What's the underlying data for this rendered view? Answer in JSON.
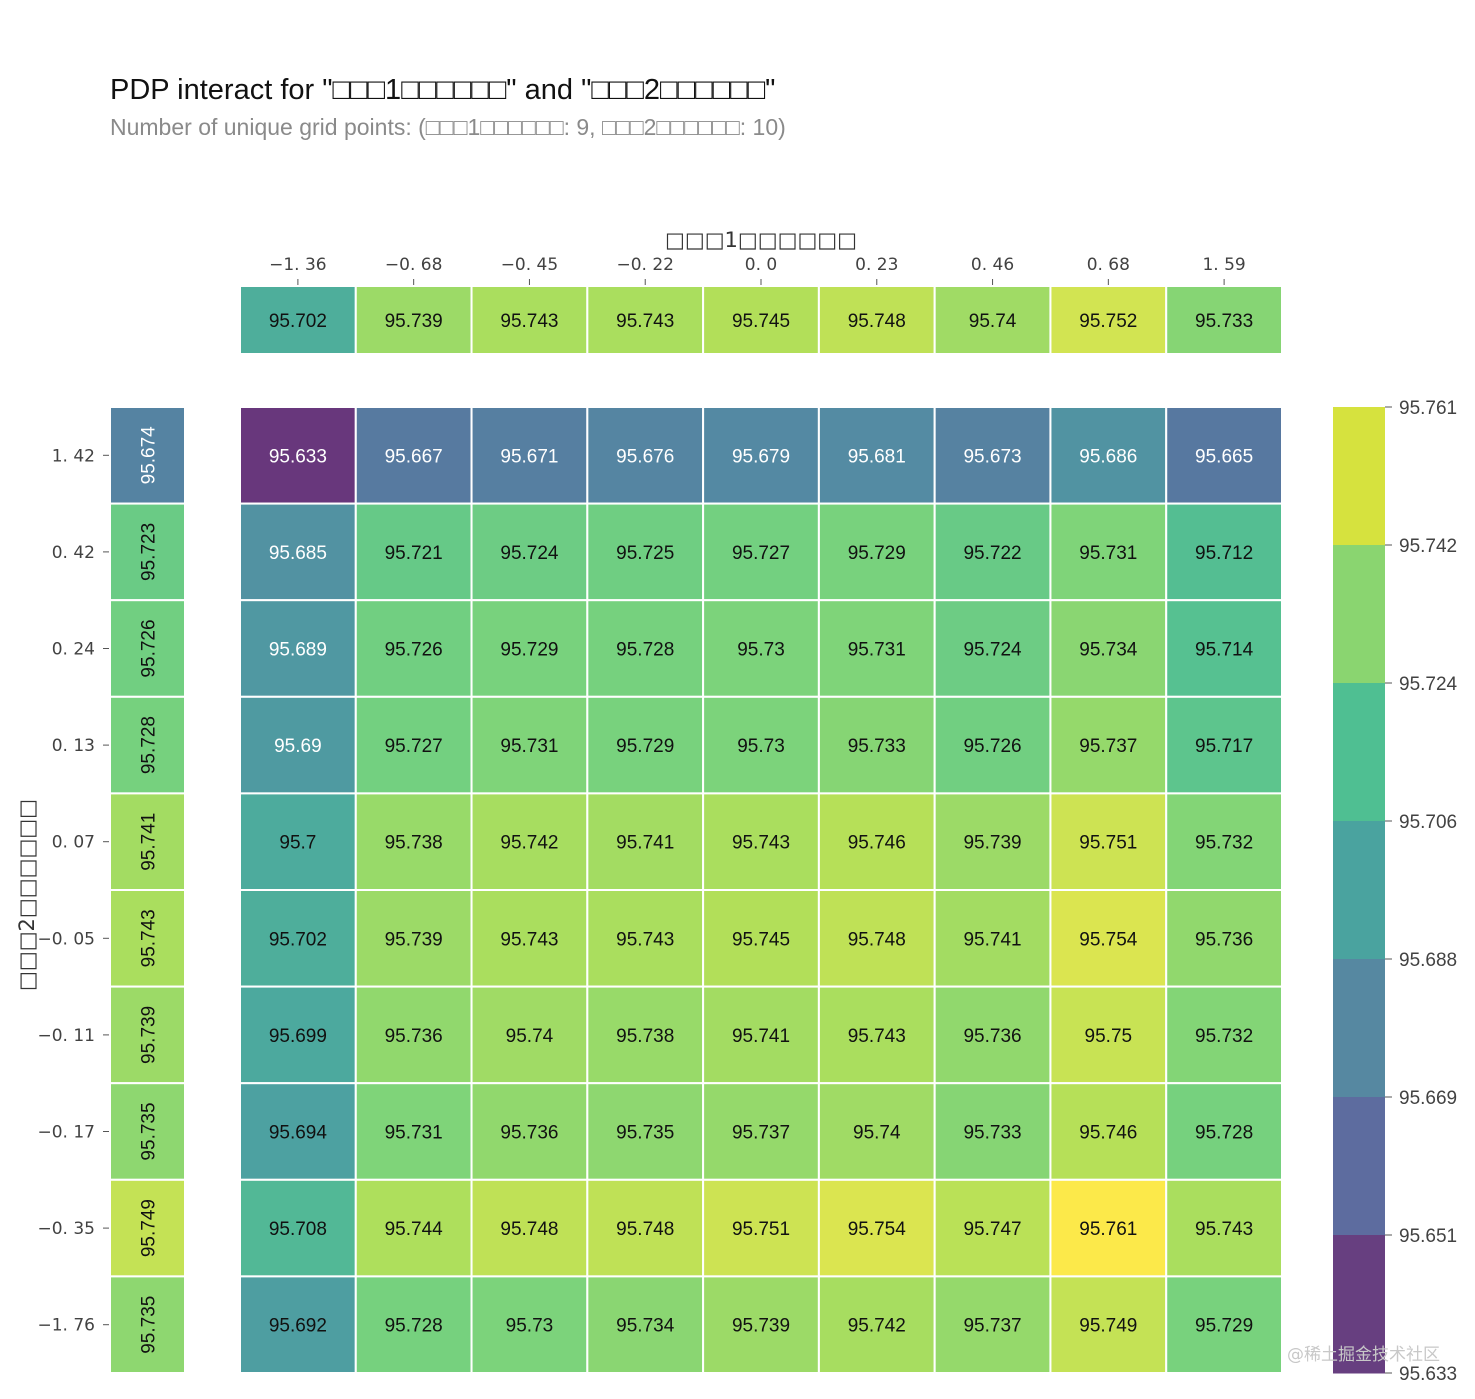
{
  "chart_data": {
    "type": "heatmap",
    "title": "PDP interact for \"□□□1□□□□□□\" and \"□□□2□□□□□□\"",
    "subtitle": "Number of unique grid points: (□□□1□□□□□□: 9, □□□2□□□□□□: 10)",
    "xlabel": "□□□1□□□□□□",
    "ylabel": "□□□2□□□□□□",
    "x_ticks": [
      "−1. 36",
      "−0. 68",
      "−0. 45",
      "−0. 22",
      "0. 0",
      "0. 23",
      "0. 46",
      "0. 68",
      "1. 59"
    ],
    "y_ticks": [
      "1. 42",
      "0. 42",
      "0. 24",
      "0. 13",
      "0. 07",
      "−0. 05",
      "−0. 11",
      "−0. 17",
      "−0. 35",
      "−1. 76"
    ],
    "x_marginal": [
      "95.702",
      "95.739",
      "95.743",
      "95.743",
      "95.745",
      "95.748",
      "95.74",
      "95.752",
      "95.733"
    ],
    "y_marginal": [
      "95.674",
      "95.723",
      "95.726",
      "95.728",
      "95.741",
      "95.743",
      "95.739",
      "95.735",
      "95.749",
      "95.735"
    ],
    "matrix": [
      [
        "95.633",
        "95.667",
        "95.671",
        "95.676",
        "95.679",
        "95.681",
        "95.673",
        "95.686",
        "95.665"
      ],
      [
        "95.685",
        "95.721",
        "95.724",
        "95.725",
        "95.727",
        "95.729",
        "95.722",
        "95.731",
        "95.712"
      ],
      [
        "95.689",
        "95.726",
        "95.729",
        "95.728",
        "95.73",
        "95.731",
        "95.724",
        "95.734",
        "95.714"
      ],
      [
        "95.69",
        "95.727",
        "95.731",
        "95.729",
        "95.73",
        "95.733",
        "95.726",
        "95.737",
        "95.717"
      ],
      [
        "95.7",
        "95.738",
        "95.742",
        "95.741",
        "95.743",
        "95.746",
        "95.739",
        "95.751",
        "95.732"
      ],
      [
        "95.702",
        "95.739",
        "95.743",
        "95.743",
        "95.745",
        "95.748",
        "95.741",
        "95.754",
        "95.736"
      ],
      [
        "95.699",
        "95.736",
        "95.74",
        "95.738",
        "95.741",
        "95.743",
        "95.736",
        "95.75",
        "95.732"
      ],
      [
        "95.694",
        "95.731",
        "95.736",
        "95.735",
        "95.737",
        "95.74",
        "95.733",
        "95.746",
        "95.728"
      ],
      [
        "95.708",
        "95.744",
        "95.748",
        "95.748",
        "95.751",
        "95.754",
        "95.747",
        "95.761",
        "95.743"
      ],
      [
        "95.692",
        "95.728",
        "95.73",
        "95.734",
        "95.739",
        "95.742",
        "95.737",
        "95.749",
        "95.729"
      ]
    ],
    "colorbar": {
      "labels": [
        "95.761",
        "95.742",
        "95.724",
        "95.706",
        "95.688",
        "95.669",
        "95.651",
        "95.633"
      ],
      "colors": [
        "#d6e23e",
        "#8ad570",
        "#4fbf92",
        "#4aa39f",
        "#5688a1",
        "#5d6c9f",
        "#673f80"
      ]
    },
    "colormap": "viridis",
    "value_range": [
      95.633,
      95.761
    ],
    "grid": false,
    "colorbar_placement": "right"
  },
  "watermark": "@稀土掘金技术社区"
}
